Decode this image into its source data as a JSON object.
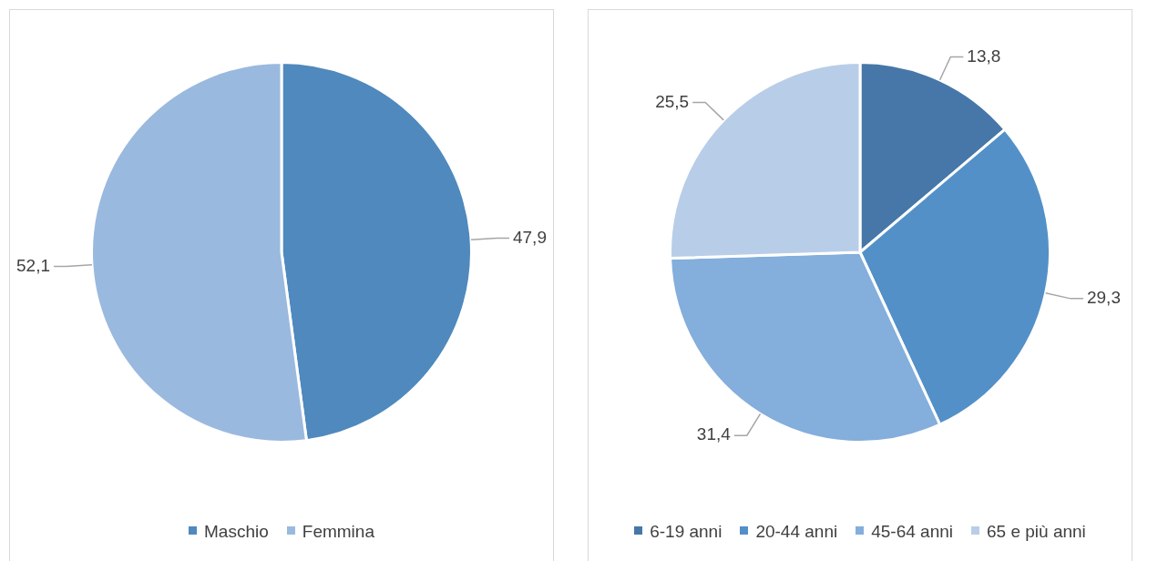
{
  "chart_data": [
    {
      "type": "pie",
      "categories": [
        "Maschio",
        "Femmina"
      ],
      "values": [
        47.9,
        52.1
      ],
      "colors": [
        "#4f89bd",
        "#9ab9df"
      ],
      "value_labels": [
        "47,9",
        "52,1"
      ],
      "legend": "bottom"
    },
    {
      "type": "pie",
      "categories": [
        "6-19 anni",
        "20-44 anni",
        "45-64 anni",
        "65 e più anni"
      ],
      "values": [
        13.8,
        29.3,
        31.4,
        25.5
      ],
      "colors": [
        "#4677a8",
        "#5390c8",
        "#84aedb",
        "#b8cde8"
      ],
      "value_labels": [
        "13,8",
        "29,3",
        "31,4",
        "25,5"
      ],
      "legend": "bottom"
    }
  ]
}
